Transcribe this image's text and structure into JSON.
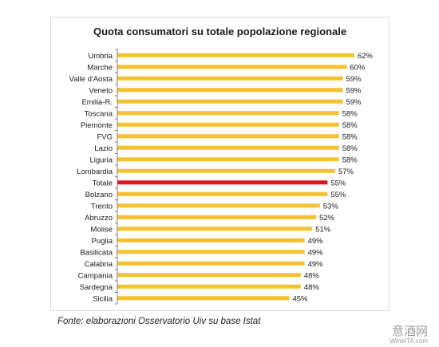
{
  "chart_data": {
    "type": "bar",
    "orientation": "horizontal",
    "title": "Quota consumatori su totale popolazione regionale",
    "categories": [
      "Umbria",
      "Marche",
      "Valle d'Aosta",
      "Veneto",
      "Emilia-R.",
      "Toscana",
      "Piemonte",
      "FVG",
      "Lazio",
      "Liguria",
      "Lombardia",
      "Totale",
      "Bolzano",
      "Trento",
      "Abruzzo",
      "Molise",
      "Puglia",
      "Basilicata",
      "Calabria",
      "Campania",
      "Sardegna",
      "Sicilia"
    ],
    "values": [
      62,
      60,
      59,
      59,
      59,
      58,
      58,
      58,
      58,
      58,
      57,
      55,
      55,
      53,
      52,
      51,
      49,
      49,
      49,
      48,
      48,
      45
    ],
    "value_labels": [
      "62%",
      "60%",
      "59%",
      "59%",
      "59%",
      "58%",
      "58%",
      "58%",
      "58%",
      "58%",
      "57%",
      "55%",
      "55%",
      "53%",
      "52%",
      "51%",
      "49%",
      "49%",
      "49%",
      "48%",
      "48%",
      "45%"
    ],
    "highlight_category": "Totale",
    "xlim": [
      0,
      66
    ],
    "grid": false,
    "legend": "none",
    "colors": {
      "bar": "#F5C12E",
      "highlight": "#E0141C",
      "axis": "#7f7f7f",
      "text": "#1a1a1a"
    }
  },
  "source_note": "Fonte: elaborazioni Osservatorio Uiv su base Istat",
  "watermark": {
    "chinese": "意酒网",
    "url": "WineITA.com"
  }
}
